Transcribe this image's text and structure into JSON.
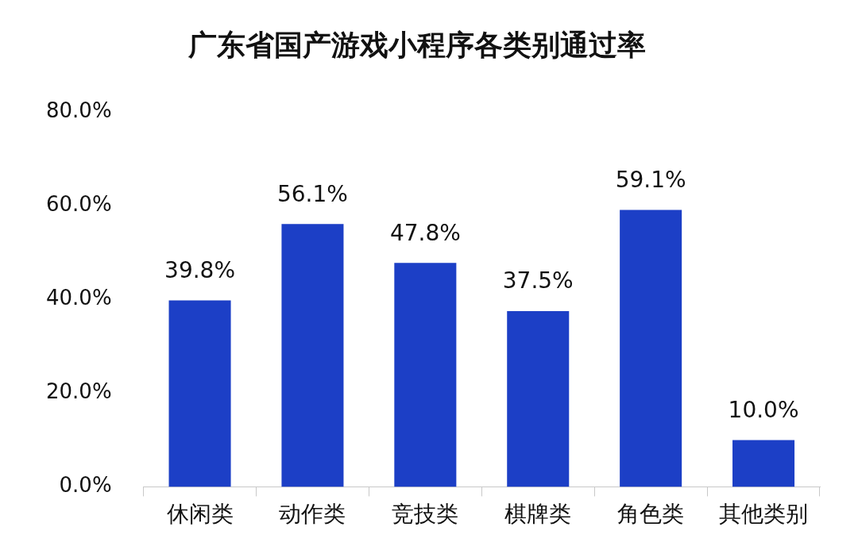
{
  "chart_data": {
    "type": "bar",
    "title": "广东省国产游戏小程序各类别通过率",
    "categories": [
      "休闲类",
      "动作类",
      "竞技类",
      "棋牌类",
      "角色类",
      "其他类别"
    ],
    "values": [
      39.8,
      56.1,
      47.8,
      37.5,
      59.1,
      10.0
    ],
    "value_labels": [
      "39.8%",
      "56.1%",
      "47.8%",
      "37.5%",
      "59.1%",
      "10.0%"
    ],
    "color": "#1c3fc6",
    "ylim": [
      0,
      80
    ],
    "yticks": [
      {
        "value": 0,
        "label": "0.0%"
      },
      {
        "value": 20,
        "label": "20.0%"
      },
      {
        "value": 40,
        "label": "40.0%"
      },
      {
        "value": 60,
        "label": "60.0%"
      },
      {
        "value": 80,
        "label": "80.0%"
      }
    ],
    "grid": false,
    "legend": false
  }
}
